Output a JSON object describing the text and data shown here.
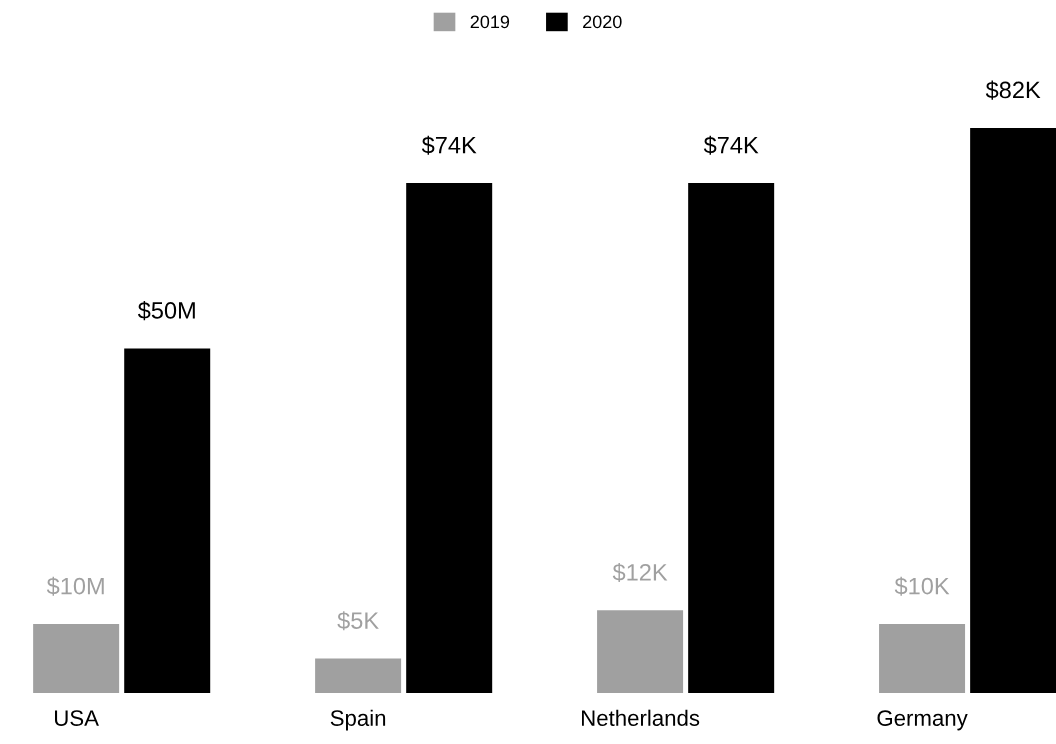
{
  "chart_data": {
    "type": "bar",
    "categories": [
      "USA",
      "Spain",
      "Netherlands",
      "Germany"
    ],
    "series": [
      {
        "name": "2019",
        "color": "#a0a0a0",
        "values": [
          10,
          5,
          12,
          10
        ],
        "value_labels": [
          "$10M",
          "$5K",
          "$12K",
          "$10K"
        ]
      },
      {
        "name": "2020",
        "color": "#000000",
        "values": [
          50,
          74,
          74,
          82
        ],
        "value_labels": [
          "$50M",
          "$74K",
          "$74K",
          "$82K"
        ]
      }
    ],
    "legend": "top",
    "grid": false
  }
}
